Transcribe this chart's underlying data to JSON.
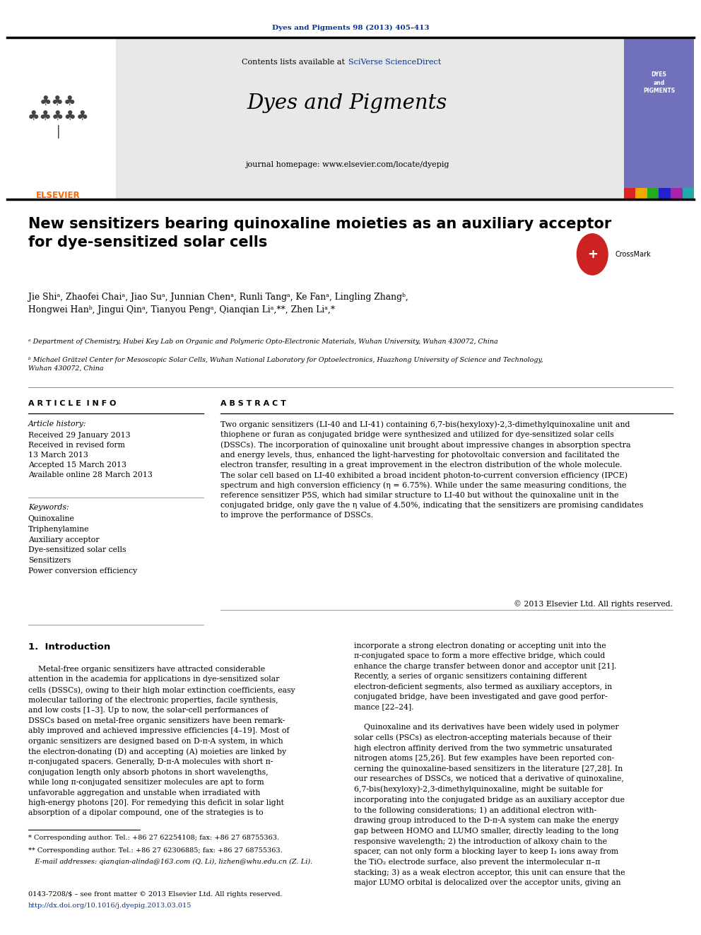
{
  "page_width": 9.92,
  "page_height": 13.23,
  "bg_color": "#ffffff",
  "header_journal_ref": "Dyes and Pigments 98 (2013) 405–413",
  "header_contents_text": "Contents lists available at ",
  "header_sciverse": "SciVerse ScienceDirect",
  "journal_name": "Dyes and Pigments",
  "journal_homepage": "journal homepage: www.elsevier.com/locate/dyepig",
  "elsevier_color": "#ff6600",
  "sciverse_color": "#003399",
  "journal_ref_color": "#003399",
  "header_bg": "#e8e8e8",
  "title": "New sensitizers bearing quinoxaline moieties as an auxiliary acceptor\nfor dye-sensitized solar cells",
  "authors": "Jie Shiᵃ, Zhaofei Chaiᵃ, Jiao Suᵃ, Junnian Chenᵃ, Runli Tangᵃ, Ke Fanᵃ, Lingling Zhangᵇ,\nHongwei Hanᵇ, Jingui Qinᵃ, Tianyou Pengᵃ, Qianqian Liᵃ,**, Zhen Liᵃ,*",
  "affiliation_a": "ᵃ Department of Chemistry, Hubei Key Lab on Organic and Polymeric Opto-Electronic Materials, Wuhan University, Wuhan 430072, China",
  "affiliation_b": "ᵇ Michael Grätzel Center for Mesoscopic Solar Cells, Wuhan National Laboratory for Optoelectronics, Huazhong University of Science and Technology,\nWuhan 430072, China",
  "article_info_header": "A R T I C L E  I N F O",
  "abstract_header": "A B S T R A C T",
  "article_history_label": "Article history:",
  "article_history": "Received 29 January 2013\nReceived in revised form\n13 March 2013\nAccepted 15 March 2013\nAvailable online 28 March 2013",
  "keywords_label": "Keywords:",
  "keywords": "Quinoxaline\nTriphenylamine\nAuxiliary acceptor\nDye-sensitized solar cells\nSensitizers\nPower conversion efficiency",
  "abstract_text": "Two organic sensitizers (LI-40 and LI-41) containing 6,7-bis(hexyloxy)-2,3-dimethylquinoxaline unit and\nthiophene or furan as conjugated bridge were synthesized and utilized for dye-sensitized solar cells\n(DSSCs). The incorporation of quinoxaline unit brought about impressive changes in absorption spectra\nand energy levels, thus, enhanced the light-harvesting for photovoltaic conversion and facilitated the\nelectron transfer, resulting in a great improvement in the electron distribution of the whole molecule.\nThe solar cell based on LI-40 exhibited a broad incident photon-to-current conversion efficiency (IPCE)\nspectrum and high conversion efficiency (η = 6.75%). While under the same measuring conditions, the\nreference sensitizer P5S, which had similar structure to LI-40 but without the quinoxaline unit in the\nconjugated bridge, only gave the η value of 4.50%, indicating that the sensitizers are promising candidates\nto improve the performance of DSSCs.",
  "copyright_text": "© 2013 Elsevier Ltd. All rights reserved.",
  "intro_header": "1.  Introduction",
  "intro_col1": "    Metal-free organic sensitizers have attracted considerable\nattention in the academia for applications in dye-sensitized solar\ncells (DSSCs), owing to their high molar extinction coefficients, easy\nmolecular tailoring of the electronic properties, facile synthesis,\nand low costs [1–3]. Up to now, the solar-cell performances of\nDSSCs based on metal-free organic sensitizers have been remark-\nably improved and achieved impressive efficiencies [4–19]. Most of\norganic sensitizers are designed based on D-π-A system, in which\nthe electron-donating (D) and accepting (A) moieties are linked by\nπ-conjugated spacers. Generally, D-π-A molecules with short π-\nconjugation length only absorb photons in short wavelengths,\nwhile long π-conjugated sensitizer molecules are apt to form\nunfavorable aggregation and unstable when irradiated with\nhigh-energy photons [20]. For remedying this deficit in solar light\nabsorption of a dipolar compound, one of the strategies is to",
  "intro_col2": "incorporate a strong electron donating or accepting unit into the\nπ-conjugated space to form a more effective bridge, which could\nenhance the charge transfer between donor and acceptor unit [21].\nRecently, a series of organic sensitizers containing different\nelectron-deficient segments, also termed as auxiliary acceptors, in\nconjugated bridge, have been investigated and gave good perfor-\nmance [22–24].\n\n    Quinoxaline and its derivatives have been widely used in polymer\nsolar cells (PSCs) as electron-accepting materials because of their\nhigh electron affinity derived from the two symmetric unsaturated\nnitrogen atoms [25,26]. But few examples have been reported con-\ncerning the quinoxaline-based sensitizers in the literature [27,28]. In\nour researches of DSSCs, we noticed that a derivative of quinoxaline,\n6,7-bis(hexyloxy)-2,3-dimethylquinoxaline, might be suitable for\nincorporating into the conjugated bridge as an auxiliary acceptor due\nto the following considerations; 1) an additional electron with-\ndrawing group introduced to the D-π-A system can make the energy\ngap between HOMO and LUMO smaller, directly leading to the long\nresponsive wavelength; 2) the introduction of alkoxy chain to the\nspacer, can not only form a blocking layer to keep I₃ ions away from\nthe TiO₂ electrode surface, also prevent the intermolecular π–π\nstacking; 3) as a weak electron acceptor, this unit can ensure that the\nmajor LUMO orbital is delocalized over the acceptor units, giving an",
  "footnote_star": "* Corresponding author. Tel.: +86 27 62254108; fax: +86 27 68755363.",
  "footnote_dstar": "** Corresponding author. Tel.: +86 27 62306885; fax: +86 27 68755363.",
  "footnote_email": "   E-mail addresses: qianqian-alinda@163.com (Q. Li), lizhen@whu.edu.cn (Z. Li).",
  "footer_issn": "0143-7208/$ – see front matter © 2013 Elsevier Ltd. All rights reserved.",
  "footer_doi": "http://dx.doi.org/10.1016/j.dyepig.2013.03.015",
  "doi_color": "#003399",
  "link_color": "#003399"
}
